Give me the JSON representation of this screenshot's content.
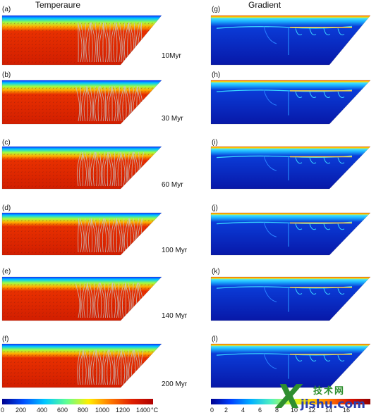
{
  "headings": {
    "left": "Temperaure",
    "right": "Gradient"
  },
  "rows": [
    {
      "left_label": "(a)",
      "right_label": "(g)",
      "time": "10Myr"
    },
    {
      "left_label": "(b)",
      "right_label": "(h)",
      "time": "30 Myr"
    },
    {
      "left_label": "(c)",
      "right_label": "(i)",
      "time": "60 Myr"
    },
    {
      "left_label": "(d)",
      "right_label": "(j)",
      "time": "100 Myr"
    },
    {
      "left_label": "(e)",
      "right_label": "(k)",
      "time": "140 Myr"
    },
    {
      "left_label": "(f)",
      "right_label": "(l)",
      "time": "200 Myr"
    }
  ],
  "temperature_colorbar": {
    "ticks": [
      "0",
      "200",
      "400",
      "600",
      "800",
      "1000",
      "1200",
      "1400"
    ],
    "unit": "°C",
    "colors": [
      "#00008f",
      "#0050ff",
      "#00c8ff",
      "#60ff90",
      "#ffee00",
      "#ff7a00",
      "#e02000",
      "#b00000"
    ]
  },
  "gradient_colorbar": {
    "ticks": [
      "0",
      "2",
      "4",
      "6",
      "8",
      "10",
      "12",
      "14",
      "16"
    ],
    "colors": [
      "#00008f",
      "#0040ff",
      "#00b0ff",
      "#50f0c0",
      "#d0ff30",
      "#ffd000",
      "#ff7000",
      "#d81000",
      "#900000"
    ]
  },
  "watermark": {
    "big": "X",
    "cn": "技术网",
    "sub": "jishu.com"
  }
}
